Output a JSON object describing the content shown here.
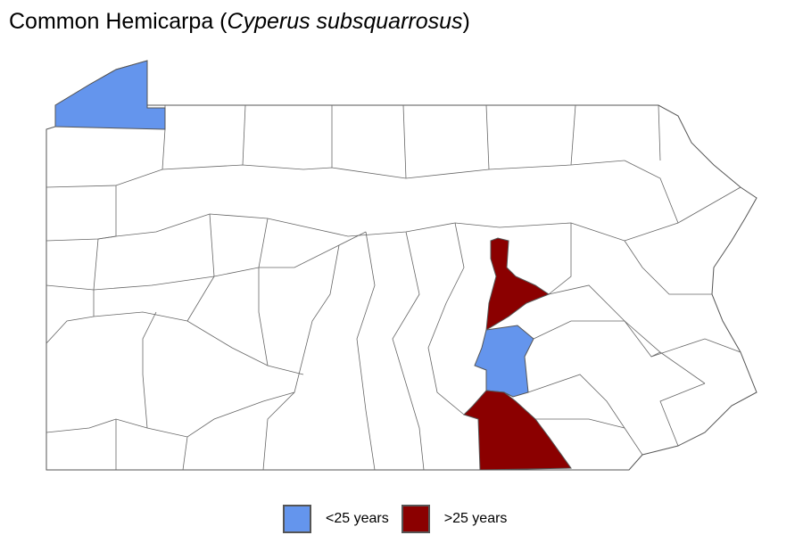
{
  "title": {
    "common_name": "Common Hemicarpa (",
    "scientific_name": "Cyperus subsquarrosus",
    "close": ")"
  },
  "legend": [
    {
      "label": "<25 years",
      "color": "#6495ED"
    },
    {
      "label": ">25 years",
      "color": "#8B0000"
    }
  ],
  "map": {
    "region": "Pennsylvania counties",
    "border_color": "#555555",
    "fill_color": "#ffffff"
  }
}
